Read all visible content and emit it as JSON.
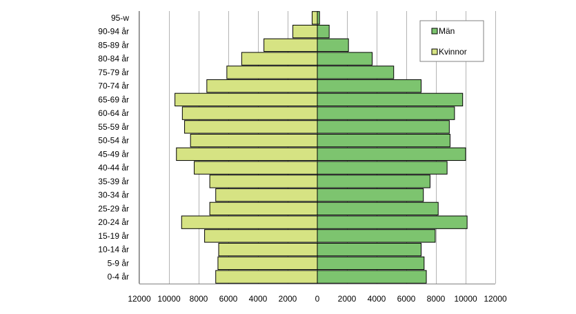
{
  "chart_data": {
    "type": "bar",
    "orientation": "horizontal",
    "layout": "population-pyramid",
    "title": "",
    "xlabel": "",
    "ylabel": "",
    "categories": [
      "0-4 år",
      "5-9 år",
      "10-14 år",
      "15-19 år",
      "20-24 år",
      "25-29 år",
      "30-34 år",
      "35-39 år",
      "40-44 år",
      "45-49 år",
      "50-54 år",
      "55-59 år",
      "60-64 år",
      "65-69 år",
      "70-74 år",
      "75-79 år",
      "80-84 år",
      "85-89 år",
      "90-94 år",
      "95-w"
    ],
    "series": [
      {
        "name": "Män",
        "color": "#7dc46f",
        "side": "right",
        "values": [
          7350,
          7200,
          7000,
          7950,
          10100,
          8150,
          7150,
          7600,
          8750,
          10000,
          8950,
          8900,
          9250,
          9800,
          7000,
          5150,
          3700,
          2100,
          800,
          150
        ]
      },
      {
        "name": "Kvinnor",
        "color": "#d6e383",
        "side": "left",
        "values": [
          6850,
          6700,
          6650,
          7600,
          9150,
          7250,
          6850,
          7250,
          8300,
          9500,
          8550,
          8950,
          9100,
          9600,
          7450,
          6100,
          5100,
          3600,
          1650,
          350
        ]
      }
    ],
    "x_ticks": [
      "12000",
      "10000",
      "8000",
      "6000",
      "4000",
      "2000",
      "0",
      "2000",
      "4000",
      "6000",
      "8000",
      "10000",
      "12000"
    ],
    "xlim": [
      -12000,
      12000
    ],
    "grid": "vertical",
    "legend_position": "top-right"
  }
}
